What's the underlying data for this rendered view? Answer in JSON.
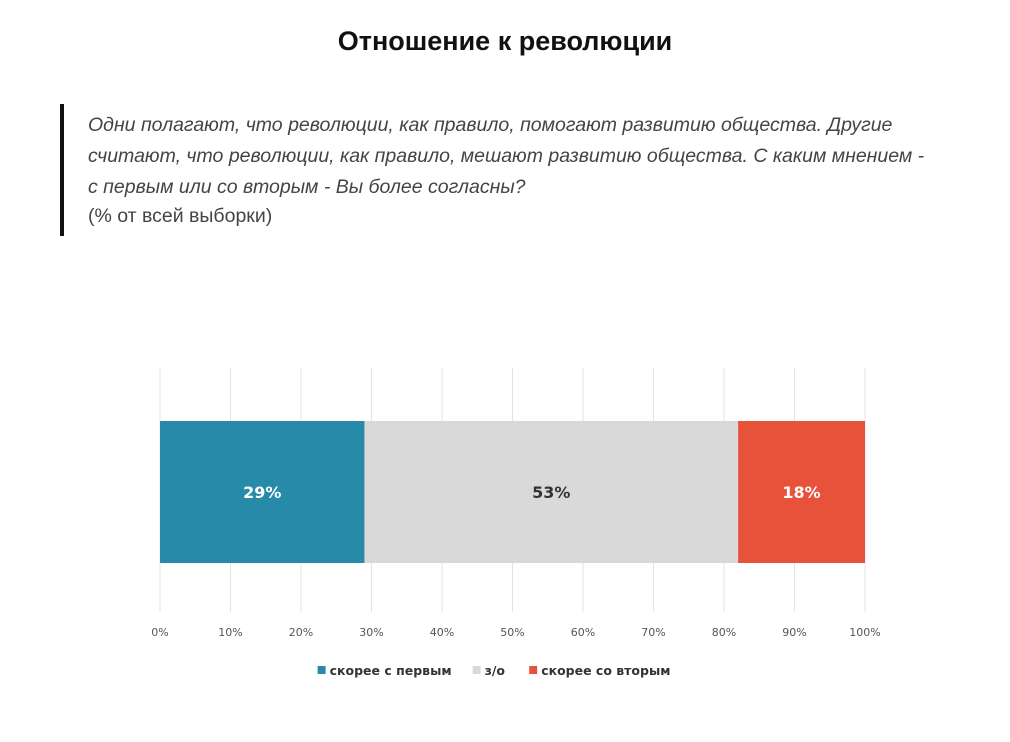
{
  "page": {
    "title": "Отношение к революции",
    "question": "Одни полагают, что революции, как правило, помогают развитию общества. Другие считают, что революции, как правило, мешают развитию общества. С каким мнением - с первым или со вторым - Вы более согласны?",
    "note": "(% от всей выборки)"
  },
  "chart_data": {
    "type": "bar",
    "orientation": "horizontal",
    "stacked": true,
    "categories": [
      ""
    ],
    "series": [
      {
        "name": "скорее с первым",
        "values": [
          29
        ],
        "label": "29%",
        "color": "#268aa8",
        "label_color": "#ffffff"
      },
      {
        "name": "з/о",
        "values": [
          53
        ],
        "label": "53%",
        "color": "#d9d9d9",
        "label_color": "#333333"
      },
      {
        "name": "скорее со вторым",
        "values": [
          18
        ],
        "label": "18%",
        "color": "#e8513a",
        "label_color": "#ffffff"
      }
    ],
    "xlim": [
      0,
      100
    ],
    "xticks": [
      "0%",
      "10%",
      "20%",
      "30%",
      "40%",
      "50%",
      "60%",
      "70%",
      "80%",
      "90%",
      "100%"
    ],
    "grid": true,
    "legend": "bottom-center"
  }
}
